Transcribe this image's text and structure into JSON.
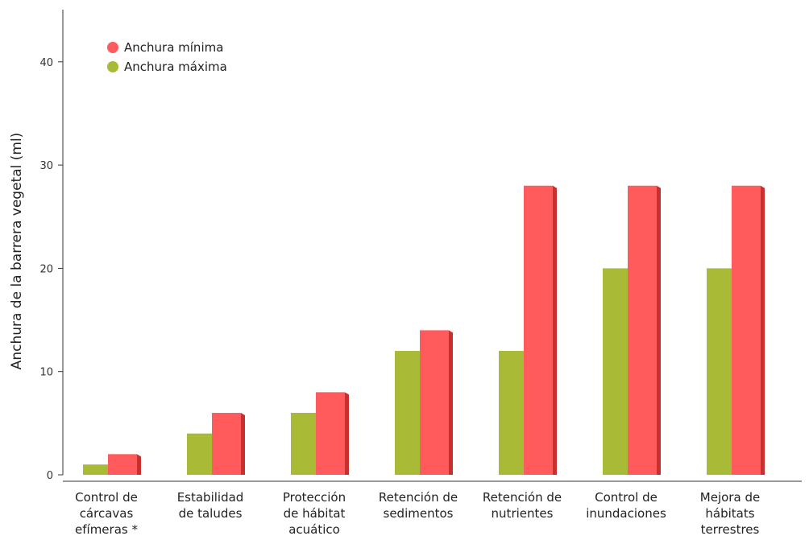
{
  "chart_data": {
    "type": "bar",
    "title": "",
    "xlabel": "",
    "ylabel": "Anchura de la barrera vegetal (ml)",
    "ylim": [
      0,
      45
    ],
    "yticks": [
      0,
      10,
      20,
      30,
      40
    ],
    "grid": false,
    "legend_position": "top-left",
    "categories": [
      [
        "Control de",
        "cárcavas",
        "efímeras *"
      ],
      [
        "Estabilidad",
        "de taludes"
      ],
      [
        "Protección",
        "de hábitat",
        "acuático"
      ],
      [
        "Retención de",
        "sedimentos"
      ],
      [
        "Retención de",
        "nutrientes"
      ],
      [
        "Control de",
        "inundaciones"
      ],
      [
        "Mejora de",
        "hábitats",
        "terrestres"
      ]
    ],
    "series": [
      {
        "name": "Anchura máxima",
        "color": "#a8ba36",
        "shade": "#7f8f24",
        "values": [
          1,
          4,
          6,
          12,
          12,
          20,
          20
        ]
      },
      {
        "name": "Anchura mínima",
        "color": "#ff5a5c",
        "shade": "#c8302f",
        "values": [
          2,
          6,
          8,
          14,
          28,
          28,
          28
        ]
      }
    ],
    "legend_order": [
      1,
      0
    ]
  }
}
